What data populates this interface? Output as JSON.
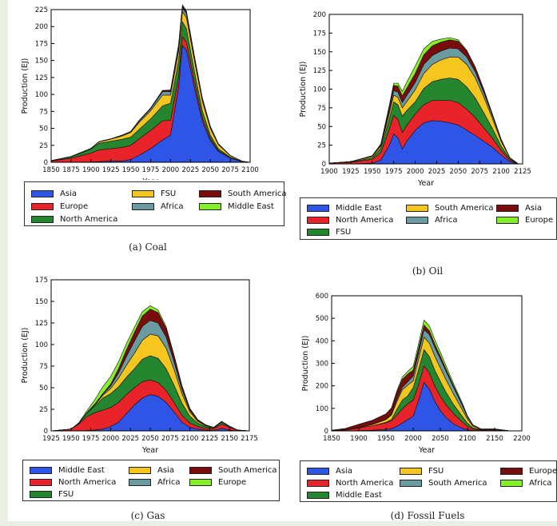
{
  "chart_data": [
    {
      "type": "area",
      "id": "coal",
      "caption": "(a) Coal",
      "xlabel": "Year",
      "ylabel": "Production (EJ)",
      "xlim": [
        1850,
        2100
      ],
      "ylim": [
        0,
        225
      ],
      "xticks": [
        1850,
        1875,
        1900,
        1925,
        1950,
        1975,
        2000,
        2025,
        2050,
        2075,
        2100
      ],
      "yticks": [
        0,
        25,
        50,
        75,
        100,
        125,
        150,
        175,
        200,
        225
      ],
      "x": [
        1850,
        1875,
        1900,
        1910,
        1925,
        1940,
        1950,
        1960,
        1975,
        1990,
        2000,
        2010,
        2015,
        2020,
        2030,
        2040,
        2050,
        2060,
        2075,
        2090,
        2100
      ],
      "series": [
        {
          "name": "Asia",
          "color": "#2f55e6",
          "values": [
            0,
            0,
            0.5,
            1,
            2,
            2,
            4,
            10,
            20,
            33,
            40,
            110,
            172,
            165,
            110,
            60,
            32,
            16,
            6,
            1,
            0
          ]
        },
        {
          "name": "Europe",
          "color": "#e8242a",
          "values": [
            2,
            6,
            13,
            17,
            18,
            20,
            21,
            24,
            27,
            28,
            22,
            15,
            13,
            12,
            9,
            6,
            3,
            1.5,
            0.5,
            0,
            0
          ]
        },
        {
          "name": "North America",
          "color": "#24872f",
          "values": [
            0.5,
            2,
            6,
            10,
            11,
            12,
            12,
            14,
            17,
            22,
            25,
            24,
            22,
            20,
            15,
            10,
            5,
            2.5,
            1,
            0,
            0
          ]
        },
        {
          "name": "FSU",
          "color": "#f5c520",
          "values": [
            0,
            0.5,
            1,
            2,
            3,
            5,
            7,
            10,
            12,
            16,
            12,
            14,
            15,
            16,
            16,
            14,
            10,
            6,
            2,
            0.5,
            0
          ]
        },
        {
          "name": "Africa",
          "color": "#6a9ba0",
          "values": [
            0,
            0,
            0,
            0.5,
            0.5,
            1,
            1,
            2,
            3,
            5,
            5,
            6,
            6,
            6,
            4,
            3,
            2,
            1,
            0.5,
            0,
            0
          ]
        },
        {
          "name": "South America",
          "color": "#7a0b0b",
          "values": [
            0,
            0,
            0,
            0,
            0,
            0.5,
            0.5,
            1,
            1,
            1.5,
            2,
            3,
            3,
            3,
            2,
            1.5,
            1,
            0.5,
            0,
            0,
            0
          ]
        },
        {
          "name": "Middle East",
          "color": "#86ef2a",
          "values": [
            0,
            0,
            0,
            0,
            0,
            0,
            0,
            0,
            0,
            0.5,
            0.5,
            1,
            1,
            1,
            0.5,
            0.5,
            0,
            0,
            0,
            0,
            0
          ]
        }
      ],
      "legend": [
        "Asia",
        "FSU",
        "South America",
        "Europe",
        "Africa",
        "Middle East",
        "North America"
      ]
    },
    {
      "type": "area",
      "id": "oil",
      "caption": "(b) Oil",
      "xlabel": "Year",
      "ylabel": "Production (EJ)",
      "xlim": [
        1900,
        2125
      ],
      "ylim": [
        0,
        200
      ],
      "xticks": [
        1900,
        1925,
        1950,
        1975,
        2000,
        2025,
        2050,
        2075,
        2100,
        2125
      ],
      "yticks": [
        0,
        25,
        50,
        75,
        100,
        125,
        150,
        175,
        200
      ],
      "x": [
        1900,
        1925,
        1950,
        1960,
        1970,
        1975,
        1980,
        1985,
        1990,
        2000,
        2010,
        2020,
        2030,
        2040,
        2050,
        2060,
        2070,
        2080,
        2090,
        2100,
        2110,
        2120
      ],
      "series": [
        {
          "name": "Middle East",
          "color": "#2f55e6",
          "values": [
            0,
            0,
            1,
            5,
            25,
            40,
            35,
            20,
            30,
            45,
            55,
            58,
            57,
            55,
            52,
            45,
            38,
            30,
            22,
            12,
            3,
            0
          ]
        },
        {
          "name": "North America",
          "color": "#e8242a",
          "values": [
            1,
            2,
            5,
            10,
            22,
            25,
            24,
            22,
            21,
            22,
            24,
            27,
            28,
            30,
            30,
            28,
            24,
            18,
            12,
            6,
            2,
            0
          ]
        },
        {
          "name": "FSU",
          "color": "#24872f",
          "values": [
            0,
            0.5,
            2,
            6,
            14,
            18,
            20,
            22,
            20,
            16,
            22,
            25,
            28,
            30,
            31,
            30,
            26,
            20,
            13,
            6,
            1.5,
            0
          ]
        },
        {
          "name": "South America",
          "color": "#f5c520",
          "values": [
            0,
            0.5,
            2,
            3,
            7,
            9,
            10,
            11,
            12,
            16,
            20,
            23,
            26,
            28,
            30,
            30,
            27,
            21,
            13,
            6,
            1.5,
            0
          ]
        },
        {
          "name": "Africa",
          "color": "#6a9ba0",
          "values": [
            0,
            0,
            0,
            0.5,
            4,
            6,
            7,
            7,
            8,
            10,
            12,
            12,
            12,
            12,
            11,
            10,
            8,
            6,
            4,
            2,
            0.5,
            0
          ]
        },
        {
          "name": "Asia",
          "color": "#7a0b0b",
          "values": [
            0,
            0,
            0.5,
            1,
            5,
            7,
            8,
            9,
            10,
            12,
            13,
            13,
            12,
            11,
            10,
            8,
            6,
            4,
            2,
            1,
            0,
            0
          ]
        },
        {
          "name": "Europe",
          "color": "#86ef2a",
          "values": [
            0,
            0,
            0.5,
            1,
            2,
            3,
            4,
            6,
            8,
            10,
            8,
            6,
            4,
            3,
            2,
            1,
            0.5,
            0,
            0,
            0,
            0,
            0
          ]
        }
      ],
      "legend": [
        "Middle East",
        "South America",
        "Asia",
        "North America",
        "Africa",
        "Europe",
        "FSU"
      ]
    },
    {
      "type": "area",
      "id": "gas",
      "caption": "(c) Gas",
      "xlabel": "Year",
      "ylabel": "Production (EJ)",
      "xlim": [
        1925,
        2175
      ],
      "ylim": [
        0,
        175
      ],
      "xticks": [
        1925,
        1950,
        1975,
        2000,
        2025,
        2050,
        2075,
        2100,
        2125,
        2150,
        2175
      ],
      "yticks": [
        0,
        25,
        50,
        75,
        100,
        125,
        150,
        175
      ],
      "x": [
        1925,
        1950,
        1960,
        1970,
        1980,
        1990,
        2000,
        2010,
        2020,
        2030,
        2040,
        2050,
        2060,
        2070,
        2080,
        2090,
        2100,
        2110,
        2120,
        2130,
        2140,
        2150,
        2160,
        2175
      ],
      "series": [
        {
          "name": "Middle East",
          "color": "#2f55e6",
          "values": [
            0,
            0,
            0,
            0.5,
            1,
            2,
            5,
            10,
            20,
            30,
            38,
            42,
            40,
            33,
            22,
            10,
            4,
            2,
            1,
            0.5,
            3,
            1,
            0,
            0
          ]
        },
        {
          "name": "North America",
          "color": "#e8242a",
          "values": [
            0,
            2,
            8,
            16,
            20,
            22,
            22,
            23,
            22,
            20,
            19,
            17,
            16,
            14,
            11,
            8,
            5,
            3,
            2,
            2,
            5,
            3,
            1,
            0
          ]
        },
        {
          "name": "FSU",
          "color": "#24872f",
          "values": [
            0,
            0,
            1,
            4,
            8,
            14,
            16,
            18,
            20,
            22,
            26,
            28,
            28,
            25,
            20,
            14,
            8,
            4,
            2,
            1,
            2,
            1,
            0,
            0
          ]
        },
        {
          "name": "Asia",
          "color": "#f5c520",
          "values": [
            0,
            0,
            0,
            0.5,
            1,
            3,
            6,
            10,
            14,
            18,
            22,
            25,
            26,
            24,
            18,
            11,
            5,
            2,
            1,
            0.5,
            1,
            0.5,
            0,
            0
          ]
        },
        {
          "name": "Africa",
          "color": "#6a9ba0",
          "values": [
            0,
            0,
            0,
            0,
            0.5,
            1,
            3,
            6,
            10,
            14,
            16,
            16,
            15,
            13,
            9,
            5,
            2,
            1,
            0.5,
            0,
            0,
            0,
            0,
            0
          ]
        },
        {
          "name": "South America",
          "color": "#7a0b0b",
          "values": [
            0,
            0,
            0,
            0,
            0.5,
            1,
            2,
            5,
            8,
            10,
            12,
            13,
            12,
            10,
            7,
            4,
            2,
            1,
            0.5,
            0,
            0,
            0,
            0,
            0
          ]
        },
        {
          "name": "Europe",
          "color": "#86ef2a",
          "values": [
            0,
            0,
            0.5,
            2,
            5,
            8,
            9,
            8,
            7,
            6,
            5,
            4,
            3,
            2,
            1,
            0.5,
            0,
            0,
            0,
            0,
            0,
            0,
            0,
            0
          ]
        }
      ],
      "legend": [
        "Middle East",
        "Asia",
        "South America",
        "North America",
        "Africa",
        "Europe",
        "FSU"
      ]
    },
    {
      "type": "area",
      "id": "fossil",
      "caption": "(d) Fossil Fuels",
      "xlabel": "Year",
      "ylabel": "Production (EJ)",
      "xlim": [
        1850,
        2200
      ],
      "ylim": [
        0,
        600
      ],
      "xticks": [
        1850,
        1900,
        1950,
        2000,
        2050,
        2100,
        2150,
        2200
      ],
      "yticks": [
        0,
        100,
        200,
        300,
        400,
        500,
        600
      ],
      "x": [
        1850,
        1875,
        1900,
        1925,
        1950,
        1960,
        1970,
        1980,
        1990,
        2000,
        2010,
        2020,
        2030,
        2040,
        2050,
        2060,
        2075,
        2090,
        2100,
        2110,
        2125,
        2150,
        2175,
        2200
      ],
      "series": [
        {
          "name": "Asia",
          "color": "#2f55e6",
          "values": [
            0,
            0,
            1,
            3,
            6,
            10,
            20,
            35,
            50,
            65,
            135,
            215,
            185,
            130,
            90,
            60,
            30,
            12,
            5,
            2,
            1,
            2,
            0,
            0
          ]
        },
        {
          "name": "North America",
          "color": "#e8242a",
          "values": [
            1,
            4,
            12,
            20,
            30,
            35,
            50,
            62,
            70,
            72,
            70,
            74,
            72,
            68,
            64,
            58,
            45,
            28,
            15,
            6,
            3,
            4,
            1,
            0
          ]
        },
        {
          "name": "Middle East",
          "color": "#24872f",
          "values": [
            0,
            0,
            0,
            0,
            2,
            5,
            25,
            40,
            35,
            55,
            68,
            72,
            72,
            70,
            66,
            56,
            40,
            26,
            14,
            5,
            1,
            1,
            0,
            0
          ]
        },
        {
          "name": "FSU",
          "color": "#f5c520",
          "values": [
            0,
            0.5,
            2,
            5,
            12,
            20,
            35,
            45,
            48,
            30,
            45,
            55,
            60,
            62,
            60,
            55,
            45,
            30,
            18,
            8,
            2,
            1,
            0,
            0
          ]
        },
        {
          "name": "South America",
          "color": "#6a9ba0",
          "values": [
            0,
            0,
            0,
            1,
            3,
            5,
            9,
            12,
            15,
            22,
            28,
            34,
            38,
            40,
            40,
            38,
            30,
            20,
            10,
            4,
            1,
            0,
            0,
            0
          ]
        },
        {
          "name": "Europe",
          "color": "#7a0b0b",
          "values": [
            2,
            6,
            14,
            18,
            22,
            26,
            32,
            35,
            34,
            26,
            22,
            20,
            17,
            14,
            12,
            10,
            7,
            4,
            2,
            1,
            0,
            0,
            0,
            0
          ]
        },
        {
          "name": "Africa",
          "color": "#86ef2a",
          "values": [
            0,
            0,
            0,
            0,
            0.5,
            1,
            6,
            10,
            12,
            16,
            20,
            22,
            22,
            20,
            18,
            15,
            10,
            6,
            3,
            1,
            0,
            0,
            0,
            0
          ]
        }
      ],
      "legend": [
        "Asia",
        "FSU",
        "Europe",
        "North America",
        "South America",
        "Africa",
        "Middle East"
      ]
    }
  ]
}
